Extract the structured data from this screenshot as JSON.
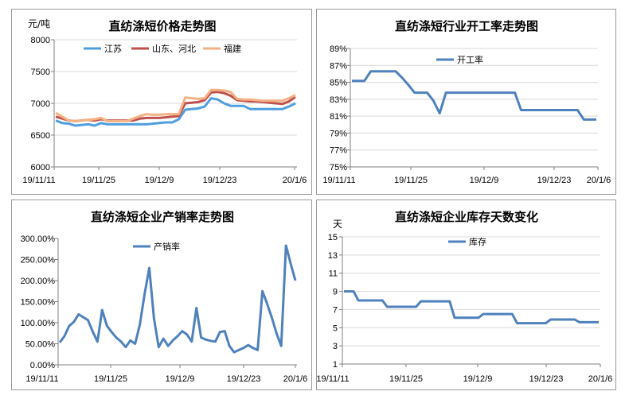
{
  "chart_data": [
    {
      "type": "line",
      "title": "直纺涤短价格走势图",
      "ylabel": "元/吨",
      "ylim": [
        6000,
        8000
      ],
      "yticks": [
        "6000",
        "6500",
        "7000",
        "7500",
        "8000"
      ],
      "xlabels": [
        "19/11/11",
        "19/11/25",
        "19/12/9",
        "19/12/23",
        "20/1/6"
      ],
      "grid": true,
      "legend": "top",
      "series": [
        {
          "name": "江苏",
          "color": "#4f9fe0",
          "values": [
            6730,
            6690,
            6680,
            6650,
            6660,
            6670,
            6650,
            6690,
            6670,
            6670,
            6670,
            6670,
            6670,
            6670,
            6670,
            6680,
            6690,
            6700,
            6700,
            6750,
            6900,
            6910,
            6920,
            6950,
            7080,
            7060,
            7000,
            6960,
            6960,
            6960,
            6910,
            6910,
            6910,
            6910,
            6910,
            6910,
            6950,
            7000
          ]
        },
        {
          "name": "山东、河北",
          "color": "#c0504d",
          "values": [
            6790,
            6760,
            6730,
            6720,
            6730,
            6740,
            6730,
            6750,
            6730,
            6730,
            6730,
            6730,
            6730,
            6760,
            6770,
            6770,
            6770,
            6780,
            6790,
            6800,
            7000,
            7010,
            7020,
            7050,
            7170,
            7180,
            7160,
            7120,
            7050,
            7040,
            7030,
            7030,
            7020,
            7010,
            7000,
            6990,
            7030,
            7100
          ]
        },
        {
          "name": "福建",
          "color": "#f4b183",
          "values": [
            6850,
            6790,
            6730,
            6720,
            6730,
            6740,
            6750,
            6770,
            6720,
            6720,
            6720,
            6720,
            6760,
            6800,
            6830,
            6820,
            6820,
            6830,
            6830,
            6830,
            7090,
            7080,
            7070,
            7080,
            7210,
            7210,
            7200,
            7180,
            7070,
            7060,
            7060,
            7050,
            7040,
            7040,
            7040,
            7040,
            7080,
            7130
          ]
        }
      ]
    },
    {
      "type": "line",
      "title": "直纺涤短行业开工率走势图",
      "ylim": [
        75,
        90
      ],
      "yticks": [
        "75%",
        "77%",
        "79%",
        "81%",
        "83%",
        "85%",
        "87%",
        "89%"
      ],
      "xlabels": [
        "19/11/11",
        "19/11/25",
        "19/12/9",
        "19/12/23",
        "20/1/6"
      ],
      "grid": true,
      "legend": "top",
      "series": [
        {
          "name": "开工率",
          "color": "#4f81bd",
          "values": [
            85.9,
            85.9,
            85.9,
            87.1,
            87.1,
            87.1,
            87.1,
            87.1,
            86.3,
            85.4,
            84.4,
            84.4,
            84.4,
            83.4,
            81.8,
            84.4,
            84.4,
            84.4,
            84.4,
            84.4,
            84.4,
            84.4,
            84.4,
            84.4,
            84.4,
            84.4,
            84.4,
            82.2,
            82.2,
            82.2,
            82.2,
            82.2,
            82.2,
            82.2,
            82.2,
            82.2,
            82.2,
            81.0,
            81.0,
            81.0
          ]
        }
      ]
    },
    {
      "type": "line",
      "title": "直纺涤短企业产销率走势图",
      "ylim": [
        0,
        300
      ],
      "yticks": [
        "0.00%",
        "50.00%",
        "100.00%",
        "150.00%",
        "200.00%",
        "250.00%",
        "300.00%"
      ],
      "xlabels": [
        "19/11/11",
        "19/11/25",
        "19/12/9",
        "19/12/23",
        "20/1/6"
      ],
      "grid": false,
      "legend": "top",
      "series": [
        {
          "name": "产销率",
          "color": "#4f81bd",
          "values": [
            53,
            68,
            92,
            102,
            120,
            113,
            106,
            79,
            55,
            130,
            93,
            78,
            65,
            55,
            42,
            58,
            50,
            95,
            168,
            230,
            110,
            42,
            62,
            45,
            58,
            68,
            80,
            72,
            55,
            135,
            65,
            60,
            57,
            55,
            78,
            80,
            45,
            30,
            35,
            40,
            47,
            40,
            35,
            175,
            145,
            112,
            75,
            45,
            283,
            240,
            200
          ]
        }
      ]
    },
    {
      "type": "line",
      "title": "直纺涤短企业库存天数变化",
      "ylabel": "天",
      "ylim": [
        1,
        15
      ],
      "yticks": [
        "1",
        "3",
        "5",
        "7",
        "9",
        "11",
        "13",
        "15"
      ],
      "xlabels": [
        "19/11/11",
        "19/11/25",
        "19/12/9",
        "19/12/23",
        "20/1/6"
      ],
      "grid": true,
      "legend": "top",
      "series": [
        {
          "name": "库存",
          "color": "#4f81bd",
          "values": [
            9.0,
            9.0,
            9.0,
            8.0,
            8.0,
            8.0,
            8.0,
            8.0,
            8.0,
            7.3,
            7.3,
            7.3,
            7.3,
            7.3,
            7.3,
            7.3,
            7.9,
            7.9,
            7.9,
            7.9,
            7.9,
            7.9,
            7.9,
            6.1,
            6.1,
            6.1,
            6.1,
            6.1,
            6.1,
            6.5,
            6.5,
            6.5,
            6.5,
            6.5,
            6.5,
            6.5,
            5.5,
            5.5,
            5.5,
            5.5,
            5.5,
            5.5,
            5.5,
            5.9,
            5.9,
            5.9,
            5.9,
            5.9,
            5.9,
            5.6,
            5.6,
            5.6,
            5.6,
            5.6
          ]
        }
      ]
    }
  ]
}
